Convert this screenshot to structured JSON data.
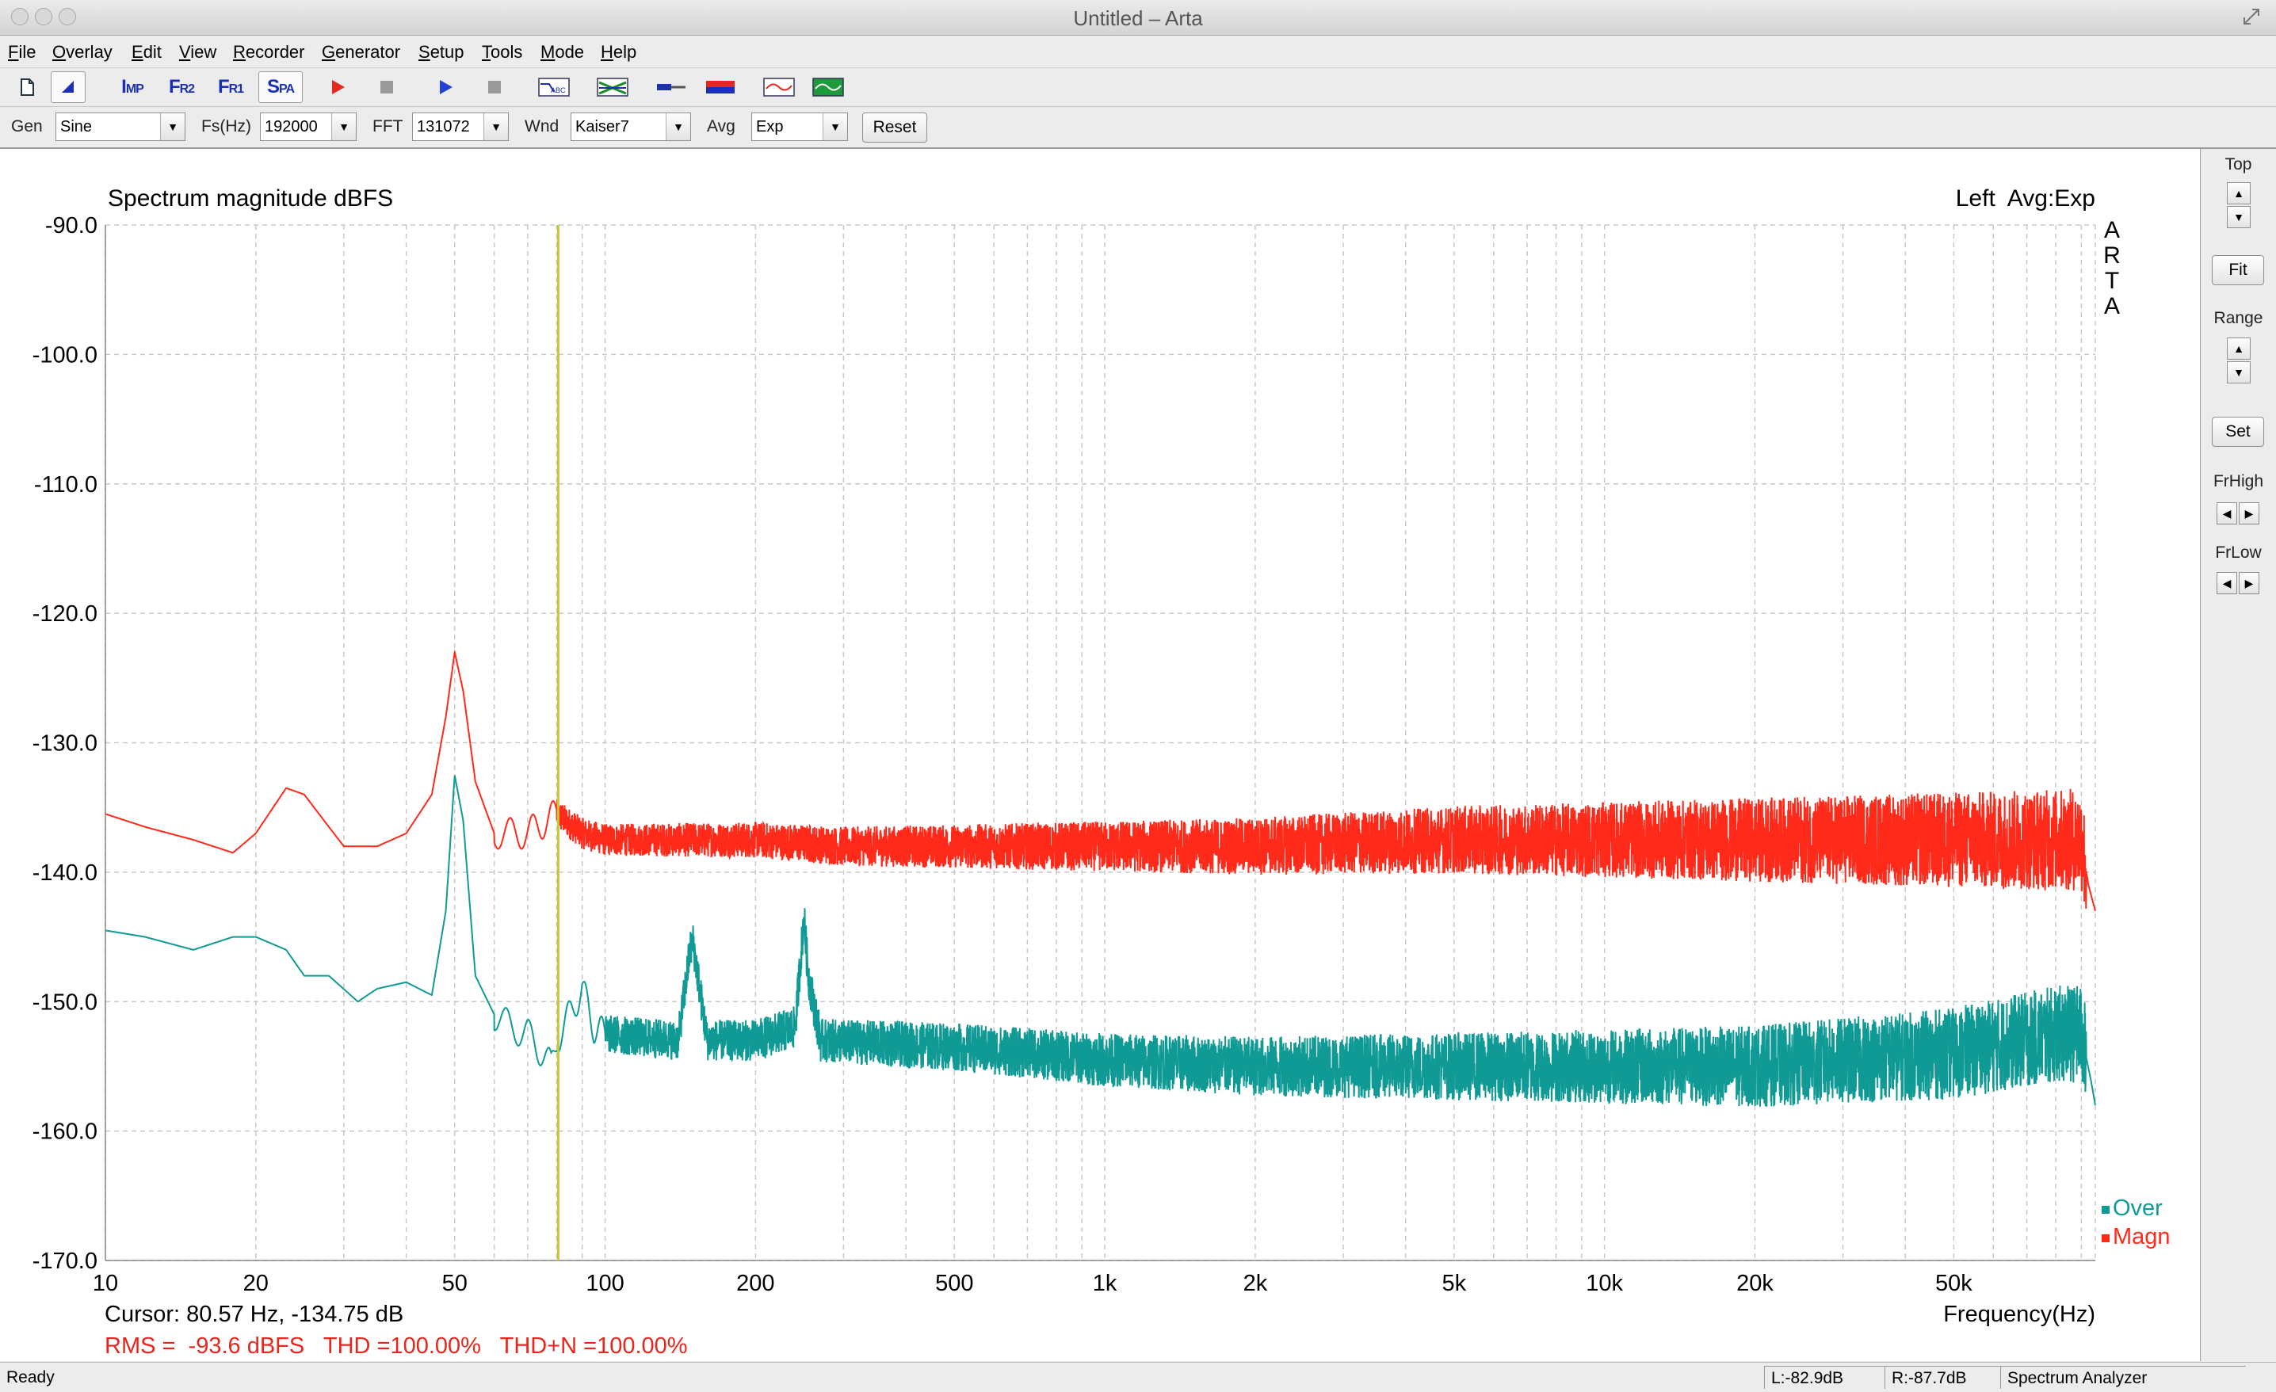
{
  "window": {
    "title": "Untitled – Arta"
  },
  "menu": [
    {
      "key": "F",
      "rest": "ile"
    },
    {
      "key": "O",
      "rest": "verlay"
    },
    {
      "key": "E",
      "rest": "dit"
    },
    {
      "key": "V",
      "rest": "iew"
    },
    {
      "key": "R",
      "rest": "ecorder"
    },
    {
      "key": "G",
      "rest": "enerator"
    },
    {
      "key": "S",
      "rest": "etup"
    },
    {
      "key": "T",
      "rest": "ools"
    },
    {
      "key": "M",
      "rest": "ode"
    },
    {
      "key": "H",
      "rest": "elp"
    }
  ],
  "toolbar": {
    "imp": {
      "big": "I",
      "small": "MP"
    },
    "fr2": {
      "big": "F",
      "small": "R2"
    },
    "fr1": {
      "big": "F",
      "small": "R1"
    },
    "spa": {
      "big": "S",
      "small": "PA"
    }
  },
  "controls": {
    "gen_label": "Gen",
    "gen_value": "Sine",
    "fs_label": "Fs(Hz)",
    "fs_value": "192000",
    "fft_label": "FFT",
    "fft_value": "131072",
    "wnd_label": "Wnd",
    "wnd_value": "Kaiser7",
    "avg_label": "Avg",
    "avg_value": "Exp",
    "reset_label": "Reset"
  },
  "right_panel": {
    "top_label": "Top",
    "fit_label": "Fit",
    "range_label": "Range",
    "set_label": "Set",
    "frhigh_label": "FrHigh",
    "frlow_label": "FrLow"
  },
  "chart_data": {
    "type": "line",
    "title": "Spectrum magnitude dBFS",
    "channel_info": "Left  Avg:Exp",
    "brand_vertical": [
      "A",
      "R",
      "T",
      "A"
    ],
    "xlabel": "Frequency(Hz)",
    "x_scale": "log",
    "xlim": [
      10,
      96000
    ],
    "ylim": [
      -170,
      -90
    ],
    "y_ticks": [
      "-90.0",
      "-100.0",
      "-110.0",
      "-120.0",
      "-130.0",
      "-140.0",
      "-150.0",
      "-160.0",
      "-170.0"
    ],
    "y_tick_values": [
      -90,
      -100,
      -110,
      -120,
      -130,
      -140,
      -150,
      -160,
      -170
    ],
    "x_ticks": [
      {
        "v": 10,
        "label": "10"
      },
      {
        "v": 20,
        "label": "20"
      },
      {
        "v": 50,
        "label": "50"
      },
      {
        "v": 100,
        "label": "100"
      },
      {
        "v": 200,
        "label": "200"
      },
      {
        "v": 500,
        "label": "500"
      },
      {
        "v": 1000,
        "label": "1k"
      },
      {
        "v": 2000,
        "label": "2k"
      },
      {
        "v": 5000,
        "label": "5k"
      },
      {
        "v": 10000,
        "label": "10k"
      },
      {
        "v": 20000,
        "label": "20k"
      },
      {
        "v": 50000,
        "label": "50k"
      }
    ],
    "grid": true,
    "cursor_x": 80.57,
    "cursor_text": "Cursor: 80.57 Hz, -134.75 dB",
    "stats_text": "RMS =  -93.6 dBFS   THD =100.00%   THD+N =100.00%",
    "legend_position": "bottom-right",
    "series": [
      {
        "name": "Magn",
        "color": "#ff2a1a",
        "points": [
          [
            10,
            -135.5
          ],
          [
            12,
            -136.5
          ],
          [
            15,
            -137.5
          ],
          [
            18,
            -138.5
          ],
          [
            20,
            -137
          ],
          [
            23,
            -133.5
          ],
          [
            25,
            -134
          ],
          [
            28,
            -136.5
          ],
          [
            30,
            -138
          ],
          [
            35,
            -138
          ],
          [
            40,
            -137
          ],
          [
            45,
            -134
          ],
          [
            48,
            -128
          ],
          [
            50,
            -123
          ],
          [
            52,
            -126
          ],
          [
            55,
            -133
          ],
          [
            60,
            -137
          ],
          [
            70,
            -137
          ],
          [
            80,
            -135.5
          ],
          [
            90,
            -137
          ],
          [
            100,
            -137.5
          ],
          [
            150,
            -137.5
          ],
          [
            200,
            -137.5
          ],
          [
            300,
            -138
          ],
          [
            500,
            -138
          ],
          [
            1000,
            -138
          ],
          [
            2000,
            -138
          ],
          [
            5000,
            -137.5
          ],
          [
            10000,
            -137.5
          ],
          [
            20000,
            -137.5
          ],
          [
            50000,
            -137.5
          ],
          [
            90000,
            -137.5
          ],
          [
            93000,
            -141
          ],
          [
            96000,
            -143
          ]
        ],
        "noise_from": 80,
        "noise_amp_low": 1.2,
        "noise_amp_high": 4.0
      },
      {
        "name": "Over",
        "color": "#0f9a95",
        "points": [
          [
            10,
            -144.5
          ],
          [
            12,
            -145
          ],
          [
            15,
            -146
          ],
          [
            18,
            -145
          ],
          [
            20,
            -145
          ],
          [
            23,
            -146
          ],
          [
            25,
            -148
          ],
          [
            28,
            -148
          ],
          [
            32,
            -150
          ],
          [
            35,
            -149
          ],
          [
            40,
            -148.5
          ],
          [
            45,
            -149.5
          ],
          [
            48,
            -143
          ],
          [
            50,
            -132.5
          ],
          [
            52,
            -136
          ],
          [
            55,
            -148
          ],
          [
            60,
            -151
          ],
          [
            65,
            -152
          ],
          [
            70,
            -152.5
          ],
          [
            75,
            -154
          ],
          [
            78,
            -155
          ],
          [
            80,
            -153
          ],
          [
            85,
            -151
          ],
          [
            90,
            -149
          ],
          [
            95,
            -152
          ],
          [
            100,
            -152.5
          ],
          [
            140,
            -153
          ],
          [
            148,
            -146
          ],
          [
            150,
            -145.5
          ],
          [
            152,
            -147
          ],
          [
            160,
            -153
          ],
          [
            200,
            -153
          ],
          [
            240,
            -152
          ],
          [
            250,
            -143.5
          ],
          [
            255,
            -148
          ],
          [
            270,
            -153
          ],
          [
            500,
            -153.5
          ],
          [
            1000,
            -154.5
          ],
          [
            2000,
            -155
          ],
          [
            5000,
            -155
          ],
          [
            10000,
            -155
          ],
          [
            20000,
            -155
          ],
          [
            50000,
            -154
          ],
          [
            80000,
            -152.5
          ],
          [
            90000,
            -152.5
          ],
          [
            94000,
            -156
          ],
          [
            96000,
            -158
          ]
        ],
        "noise_from": 100,
        "noise_amp_low": 1.5,
        "noise_amp_high": 3.8
      }
    ]
  },
  "status": {
    "ready": "Ready",
    "left_level": "L:-82.9dB",
    "right_level": "R:-87.7dB",
    "mode": "Spectrum Analyzer"
  }
}
